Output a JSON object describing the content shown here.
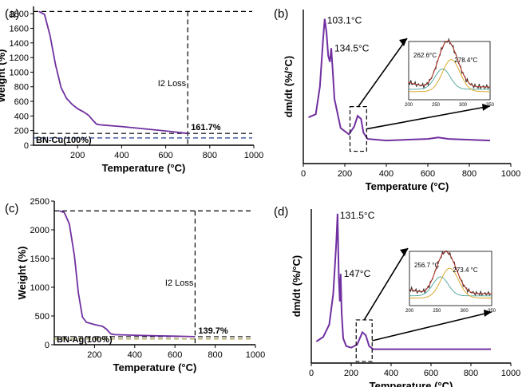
{
  "chart_data": [
    {
      "panel": "(a)",
      "type": "line",
      "xlabel": "Temperature (°C)",
      "ylabel": "Weight (%)",
      "xlim": [
        0,
        1000
      ],
      "ylim": [
        0,
        1900
      ],
      "xticks": [
        200,
        400,
        600,
        800,
        1000
      ],
      "yticks": [
        0,
        200,
        400,
        600,
        800,
        1000,
        1200,
        1400,
        1600,
        1800
      ],
      "series": [
        {
          "color": "#7030a0",
          "x": [
            25,
            50,
            75,
            100,
            125,
            150,
            175,
            200,
            225,
            250,
            270,
            285,
            300,
            400,
            500,
            600,
            700
          ],
          "y": [
            1830,
            1790,
            1500,
            1100,
            790,
            640,
            560,
            500,
            460,
            410,
            340,
            290,
            280,
            255,
            225,
            195,
            162
          ]
        }
      ],
      "hlines": [
        {
          "y": 1830,
          "color": "#000000"
        },
        {
          "y": 162,
          "color": "#000000"
        },
        {
          "y": 100,
          "color": "#1f3a93"
        }
      ],
      "vline": {
        "x": 700
      },
      "annotations": {
        "loss": "I2 Loss",
        "residual": "161.7%",
        "reference": "BN-Cu(100%)"
      }
    },
    {
      "panel": "(b)",
      "type": "line",
      "xlabel": "Temperature (°C)",
      "ylabel": "dm/dt (%/°C)",
      "xlim": [
        0,
        1000
      ],
      "xticks": [
        0,
        200,
        400,
        600,
        800,
        1000
      ],
      "series": [
        {
          "color": "#7030a0",
          "x": [
            25,
            60,
            80,
            95,
            103.1,
            112,
            120,
            128,
            134.5,
            142,
            150,
            180,
            220,
            245,
            262,
            278,
            290,
            310,
            400,
            600,
            650,
            700,
            900
          ],
          "y": [
            0.3,
            0.32,
            0.5,
            0.8,
            0.94,
            0.85,
            0.7,
            0.66,
            0.75,
            0.6,
            0.42,
            0.23,
            0.19,
            0.24,
            0.31,
            0.29,
            0.2,
            0.16,
            0.15,
            0.16,
            0.17,
            0.16,
            0.15
          ]
        }
      ],
      "peaks": [
        "103.1°C",
        "134.5°C"
      ],
      "inset": {
        "xlim": [
          200,
          350
        ],
        "xticks": [
          200,
          250,
          300,
          350
        ],
        "peaks": [
          "262.6°C",
          "278.4°C"
        ]
      }
    },
    {
      "panel": "(c)",
      "type": "line",
      "xlabel": "Temperature (°C)",
      "ylabel": "Weight (%)",
      "xlim": [
        0,
        1000
      ],
      "ylim": [
        0,
        2500
      ],
      "xticks": [
        200,
        400,
        600,
        800,
        1000
      ],
      "yticks": [
        0,
        500,
        1000,
        1500,
        2000,
        2500
      ],
      "series": [
        {
          "color": "#7030a0",
          "x": [
            25,
            50,
            75,
            100,
            120,
            140,
            160,
            200,
            240,
            260,
            280,
            300,
            400,
            500,
            600,
            700
          ],
          "y": [
            2330,
            2300,
            2100,
            1550,
            900,
            480,
            390,
            350,
            320,
            270,
            190,
            175,
            165,
            155,
            148,
            140
          ]
        }
      ],
      "hlines": [
        {
          "y": 2330,
          "color": "#000000"
        },
        {
          "y": 140,
          "color": "#000000"
        },
        {
          "y": 100,
          "color": "#9a8a2a"
        }
      ],
      "vline": {
        "x": 700
      },
      "annotations": {
        "loss": "I2 Loss",
        "residual": "139.7%",
        "reference": "BN-Ag(100%)"
      }
    },
    {
      "panel": "(d)",
      "type": "line",
      "xlabel": "Temperature (°C)",
      "ylabel": "dm/dt (%/°C)",
      "xlim": [
        0,
        1000
      ],
      "xticks": [
        0,
        200,
        400,
        600,
        800,
        1000
      ],
      "series": [
        {
          "color": "#7030a0",
          "x": [
            25,
            60,
            90,
            110,
            125,
            131.5,
            138,
            143,
            147,
            152,
            160,
            175,
            200,
            230,
            256,
            273,
            290,
            310,
            400,
            600,
            900
          ],
          "y": [
            0.14,
            0.17,
            0.25,
            0.45,
            0.78,
            0.97,
            0.55,
            0.4,
            0.58,
            0.33,
            0.16,
            0.11,
            0.1,
            0.12,
            0.2,
            0.18,
            0.11,
            0.09,
            0.09,
            0.09,
            0.09
          ]
        }
      ],
      "peaks": [
        "131.5°C",
        "147°C"
      ],
      "inset": {
        "xlim": [
          200,
          350
        ],
        "xticks": [
          200,
          250,
          300,
          350
        ],
        "peaks": [
          "256.7 °C",
          "273.4 °C"
        ]
      }
    }
  ]
}
